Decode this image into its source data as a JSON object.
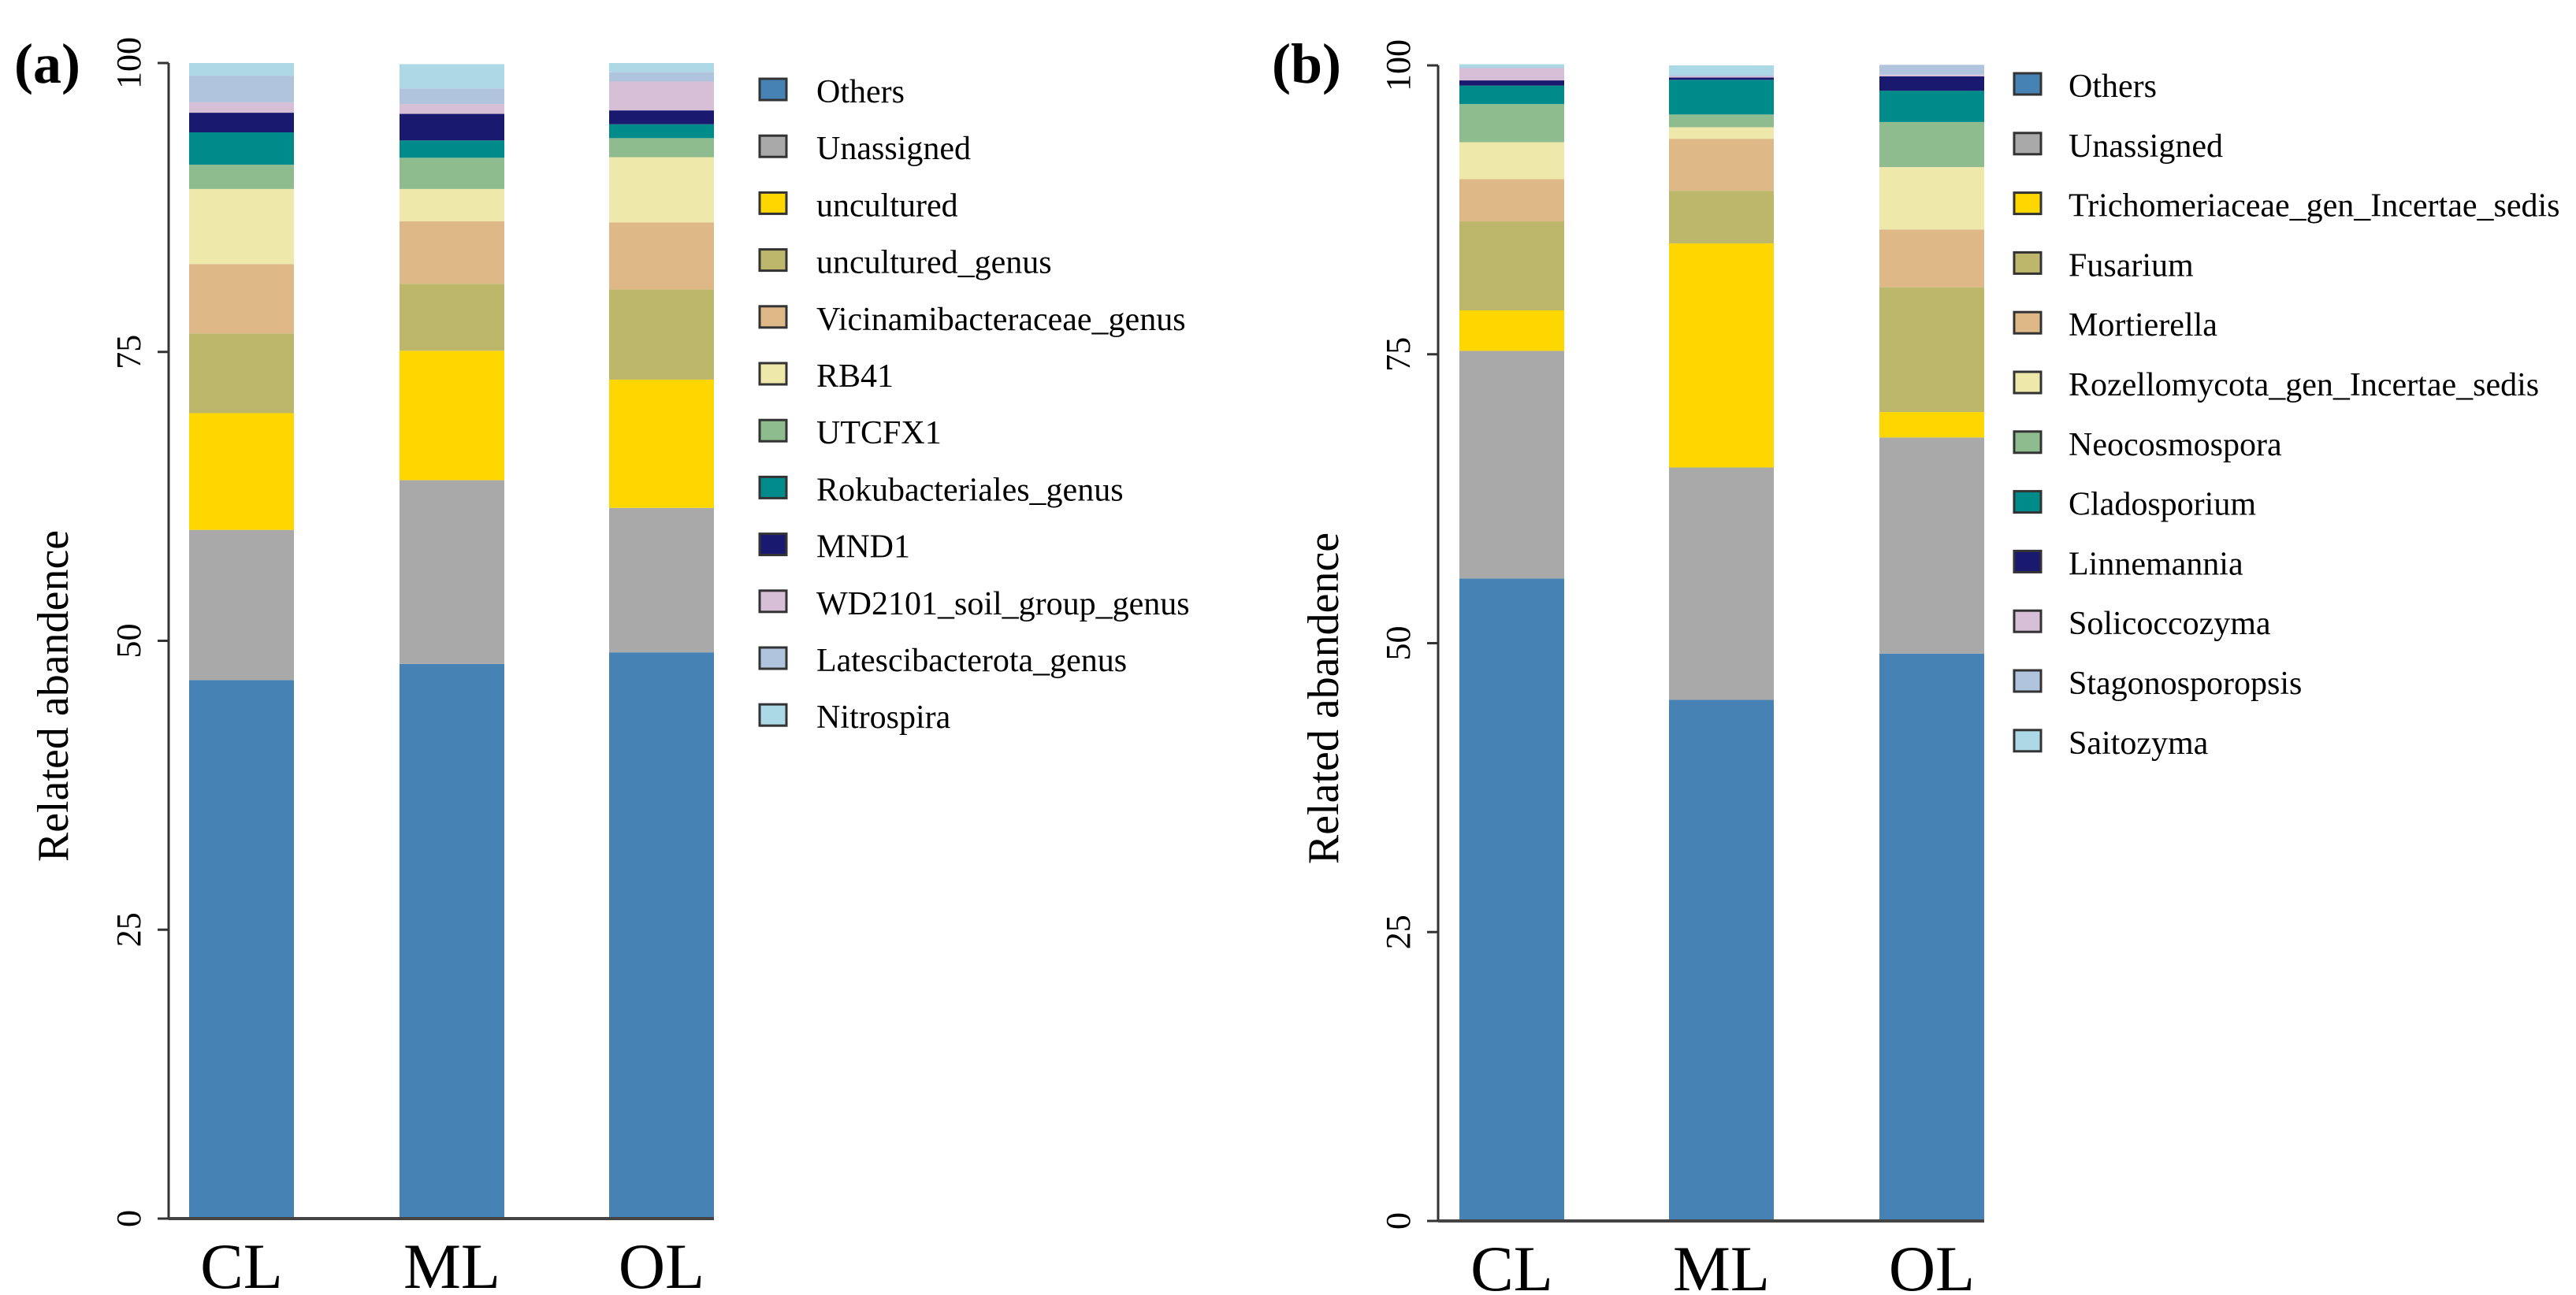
{
  "colors": [
    "#4682b4",
    "#a9a9a9",
    "#ffd700",
    "#bdb76b",
    "#deb887",
    "#eee8aa",
    "#8fbc8f",
    "#008b8b",
    "#191970",
    "#d8bfd8",
    "#b0c4de",
    "#add8e6"
  ],
  "chart_data": [
    {
      "type": "bar",
      "stacked": true,
      "panel_label": "(a)",
      "ylabel": "Related abandence",
      "xlabel": "",
      "ylim": [
        0,
        100
      ],
      "yticks": [
        "0",
        "25",
        "50",
        "75",
        "100"
      ],
      "categories": [
        "CL",
        "ML",
        "OL"
      ],
      "legend_position": "right",
      "series": [
        {
          "name": "Others",
          "values": [
            46.6,
            48.0,
            49.0
          ]
        },
        {
          "name": "Unassigned",
          "values": [
            13.0,
            15.9,
            12.5
          ]
        },
        {
          "name": "uncultured",
          "values": [
            10.1,
            11.2,
            11.1
          ]
        },
        {
          "name": "uncultured_genus",
          "values": [
            6.9,
            5.8,
            7.8
          ]
        },
        {
          "name": "Vicinamibacteraceae_genus",
          "values": [
            6.0,
            5.4,
            5.8
          ]
        },
        {
          "name": "RB41",
          "values": [
            6.5,
            2.8,
            5.65
          ]
        },
        {
          "name": "UTCFX1",
          "values": [
            2.1,
            2.7,
            1.65
          ]
        },
        {
          "name": "Rokubacteriales_genus",
          "values": [
            2.8,
            1.5,
            1.2
          ]
        },
        {
          "name": "MND1",
          "values": [
            1.7,
            2.3,
            1.2
          ]
        },
        {
          "name": "WD2101_soil_group_genus",
          "values": [
            0.9,
            0.85,
            2.5
          ]
        },
        {
          "name": "Latescibacterota_genus",
          "values": [
            2.3,
            1.35,
            0.8
          ]
        },
        {
          "name": "Nitrospira",
          "values": [
            1.1,
            2.1,
            0.8
          ]
        }
      ]
    },
    {
      "type": "bar",
      "stacked": true,
      "panel_label": "(b)",
      "ylabel": "Related abandence",
      "xlabel": "",
      "ylim": [
        0,
        100
      ],
      "yticks": [
        "0",
        "25",
        "50",
        "75",
        "100"
      ],
      "categories": [
        "CL",
        "ML",
        "OL"
      ],
      "legend_position": "right",
      "series": [
        {
          "name": "Others",
          "values": [
            55.6,
            45.1,
            49.1
          ]
        },
        {
          "name": "Unassigned",
          "values": [
            19.7,
            20.1,
            18.7
          ]
        },
        {
          "name": "Trichomeriaceae_gen_Incertae_sedis",
          "values": [
            3.5,
            19.4,
            2.2
          ]
        },
        {
          "name": "Fusarium",
          "values": [
            7.7,
            4.55,
            10.8
          ]
        },
        {
          "name": "Mortierella",
          "values": [
            3.65,
            4.5,
            5.0
          ]
        },
        {
          "name": "Rozellomycota_gen_Incertae_sedis",
          "values": [
            3.2,
            1.0,
            5.4
          ]
        },
        {
          "name": "Neocosmospora",
          "values": [
            3.3,
            1.1,
            3.9
          ]
        },
        {
          "name": "Cladosporium",
          "values": [
            1.6,
            3.0,
            2.7
          ]
        },
        {
          "name": "Linnemannia",
          "values": [
            0.45,
            0.2,
            1.25
          ]
        },
        {
          "name": "Solicoccozyma",
          "values": [
            1.05,
            0.1,
            0.15
          ]
        },
        {
          "name": "Stagonosporopsis",
          "values": [
            0.1,
            0.1,
            0.85
          ]
        },
        {
          "name": "Saitozyma",
          "values": [
            0.25,
            0.85,
            0.0
          ]
        }
      ]
    }
  ]
}
